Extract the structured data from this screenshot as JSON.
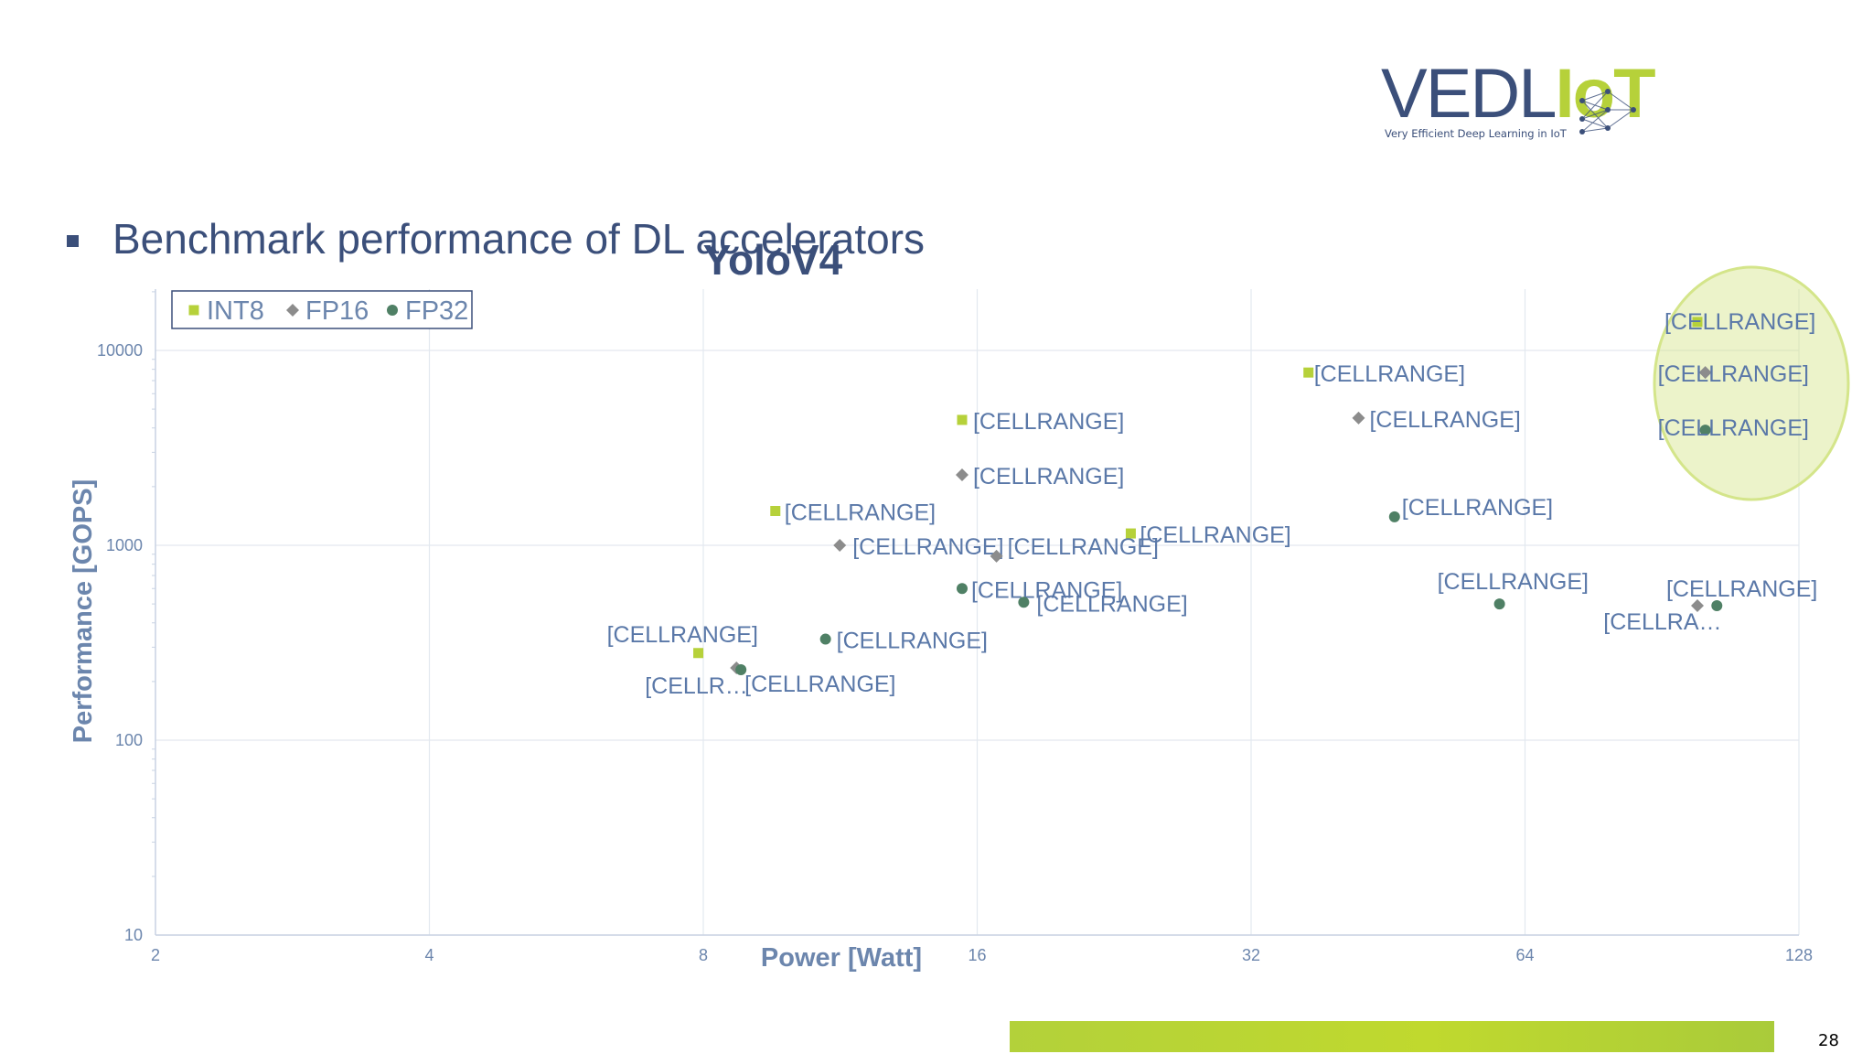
{
  "slide": {
    "logo": {
      "text_main": "VEDL",
      "text_accent": "IoT",
      "tagline": "Very Efficient Deep Learning in IoT"
    },
    "heading": "Benchmark performance of DL accelerators",
    "page_number": "28"
  },
  "colors": {
    "int8": "#b6d13a",
    "fp16": "#8c8c8c",
    "fp32": "#4f8065",
    "axis_text": "#6c86ad",
    "heading": "#3b4f7a",
    "highlight_ellipse": "#d4e58a"
  },
  "chart_data": {
    "type": "scatter",
    "title": "YoloV4",
    "xlabel": "Power [Watt]",
    "ylabel": "Performance [GOPS]",
    "x_scale": "log2",
    "y_scale": "log10",
    "xlim": [
      2,
      128
    ],
    "ylim": [
      10,
      20000
    ],
    "x_ticks": [
      "2",
      "4",
      "8",
      "16",
      "32",
      "64",
      "128"
    ],
    "y_ticks": [
      "10",
      "100",
      "1000",
      "10000"
    ],
    "legend": {
      "position": "top-left",
      "entries": [
        "INT8",
        "FP16",
        "FP32"
      ]
    },
    "grid": true,
    "highlight": "ellipse around the highest-power group",
    "series": [
      {
        "name": "INT8",
        "marker": "square",
        "points": [
          {
            "x": 7.9,
            "y": 280,
            "label": "[CELLRANGE]"
          },
          {
            "x": 9.6,
            "y": 1500,
            "label": "[CELLRANGE]"
          },
          {
            "x": 15.4,
            "y": 4400,
            "label": "[CELLRANGE]"
          },
          {
            "x": 23.6,
            "y": 1150,
            "label": "[CELLRANGE]"
          },
          {
            "x": 37,
            "y": 7700,
            "label": "[CELLRANGE]"
          },
          {
            "x": 99,
            "y": 14000,
            "label": "[CELLRANGE]"
          }
        ]
      },
      {
        "name": "FP16",
        "marker": "diamond",
        "points": [
          {
            "x": 8.7,
            "y": 235,
            "label": "[CELLR…"
          },
          {
            "x": 11.3,
            "y": 1000,
            "label": "[CELLRANGE]"
          },
          {
            "x": 15.4,
            "y": 2300,
            "label": "[CELLRANGE]"
          },
          {
            "x": 16.8,
            "y": 880,
            "label": "[CELLRANGE]"
          },
          {
            "x": 42,
            "y": 4500,
            "label": "[CELLRANGE]"
          },
          {
            "x": 99,
            "y": 490,
            "label": "[CELLRANGE]"
          },
          {
            "x": 101,
            "y": 7700,
            "label": "[CELLRANGE]"
          }
        ]
      },
      {
        "name": "FP32",
        "marker": "circle",
        "points": [
          {
            "x": 8.8,
            "y": 230,
            "label": "[CELLRANGE]"
          },
          {
            "x": 10.9,
            "y": 330,
            "label": "[CELLRANGE]"
          },
          {
            "x": 15.4,
            "y": 600,
            "label": "[CELLRANGE]"
          },
          {
            "x": 18,
            "y": 510,
            "label": "[CELLRANGE]"
          },
          {
            "x": 46,
            "y": 1400,
            "label": "[CELLRANGE]"
          },
          {
            "x": 60,
            "y": 500,
            "label": "[CELLRANGE]"
          },
          {
            "x": 101,
            "y": 3900,
            "label": "[CELLRANGE]"
          },
          {
            "x": 104,
            "y": 490,
            "label": "[CELLRA…"
          }
        ]
      }
    ]
  }
}
